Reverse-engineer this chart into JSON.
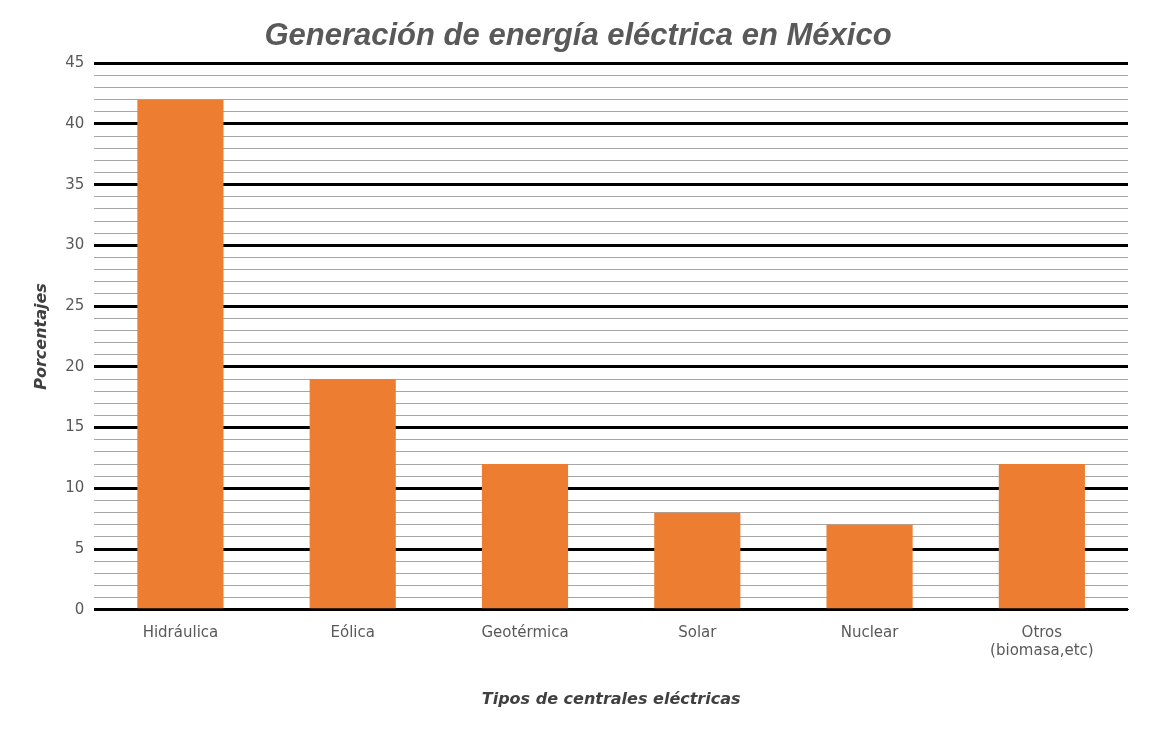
{
  "chart_data": {
    "type": "bar",
    "title": "Generación de energía eléctrica en México",
    "xlabel": "Tipos de centrales eléctricas",
    "ylabel": "Porcentajes",
    "categories": [
      "Hidráulica",
      "Eólica",
      "Geotérmica",
      "Solar",
      "Nuclear",
      "Otros (biomasa,etc)"
    ],
    "values": [
      42,
      19,
      12,
      8,
      7,
      12
    ],
    "color": "#ed7d31",
    "ylim": [
      0,
      45
    ],
    "yticks": [
      0,
      {
        "value": 1,
        "label": null
      },
      {
        "value": 2,
        "label": null
      },
      {
        "value": 3,
        "label": null
      },
      {
        "value": 4,
        "label": null
      },
      5,
      {
        "value": 6,
        "label": null
      },
      {
        "value": 7,
        "label": null
      },
      {
        "value": 8,
        "label": null
      },
      {
        "value": 9,
        "label": null
      },
      10,
      {
        "value": 11,
        "label": null
      },
      {
        "value": 12,
        "label": null
      },
      {
        "value": 13,
        "label": null
      },
      {
        "value": 14,
        "label": null
      },
      15,
      {
        "value": 16,
        "label": null
      },
      {
        "value": 17,
        "label": null
      },
      {
        "value": 18,
        "label": null
      },
      {
        "value": 19,
        "label": null
      },
      20,
      {
        "value": 21,
        "label": null
      },
      {
        "value": 22,
        "label": null
      },
      {
        "value": 23,
        "label": null
      },
      {
        "value": 24,
        "label": null
      },
      25,
      {
        "value": 26,
        "label": null
      },
      {
        "value": 27,
        "label": null
      },
      {
        "value": 28,
        "label": null
      },
      {
        "value": 29,
        "label": null
      },
      30,
      {
        "value": 31,
        "label": null
      },
      {
        "value": 32,
        "label": null
      },
      {
        "value": 33,
        "label": null
      },
      {
        "value": 34,
        "label": null
      },
      35,
      {
        "value": 36,
        "label": null
      },
      {
        "value": 37,
        "label": null
      },
      {
        "value": 38,
        "label": null
      },
      {
        "value": 39,
        "label": null
      },
      40,
      {
        "value": 41,
        "label": null
      },
      {
        "value": 42,
        "label": null
      },
      {
        "value": 43,
        "label": null
      },
      {
        "value": 44,
        "label": null
      },
      45
    ],
    "grid": "y",
    "legend": false
  }
}
